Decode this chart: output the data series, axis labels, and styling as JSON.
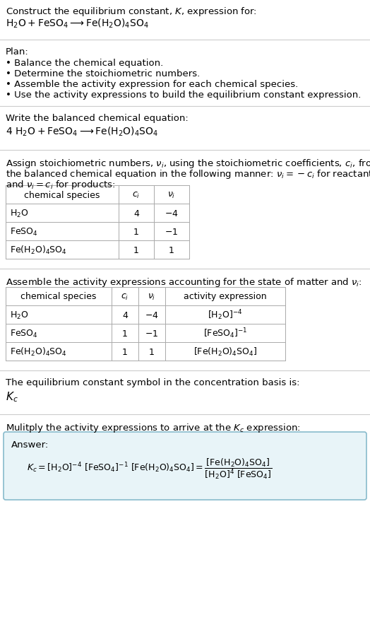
{
  "title_line1": "Construct the equilibrium constant, $K$, expression for:",
  "title_line2": "$\\mathrm{H_2O + FeSO_4 \\longrightarrow Fe(H_2O)_4SO_4}$",
  "plan_header": "Plan:",
  "plan_items": [
    "• Balance the chemical equation.",
    "• Determine the stoichiometric numbers.",
    "• Assemble the activity expression for each chemical species.",
    "• Use the activity expressions to build the equilibrium constant expression."
  ],
  "balanced_header": "Write the balanced chemical equation:",
  "balanced_eq": "$\\mathrm{4\\ H_2O + FeSO_4 \\longrightarrow Fe(H_2O)_4SO_4}$",
  "stoich_header1": "Assign stoichiometric numbers, $\\nu_i$, using the stoichiometric coefficients, $c_i$, from",
  "stoich_header2": "the balanced chemical equation in the following manner: $\\nu_i = -c_i$ for reactants",
  "stoich_header3": "and $\\nu_i = c_i$ for products:",
  "table1_headers": [
    "chemical species",
    "$c_i$",
    "$\\nu_i$"
  ],
  "table1_data": [
    [
      "$\\mathrm{H_2O}$",
      "4",
      "$-4$"
    ],
    [
      "$\\mathrm{FeSO_4}$",
      "1",
      "$-1$"
    ],
    [
      "$\\mathrm{Fe(H_2O)_4SO_4}$",
      "1",
      "1"
    ]
  ],
  "activity_header": "Assemble the activity expressions accounting for the state of matter and $\\nu_i$:",
  "table2_headers": [
    "chemical species",
    "$c_i$",
    "$\\nu_i$",
    "activity expression"
  ],
  "table2_data": [
    [
      "$\\mathrm{H_2O}$",
      "4",
      "$-4$",
      "$[\\mathrm{H_2O}]^{-4}$"
    ],
    [
      "$\\mathrm{FeSO_4}$",
      "1",
      "$-1$",
      "$[\\mathrm{FeSO_4}]^{-1}$"
    ],
    [
      "$\\mathrm{Fe(H_2O)_4SO_4}$",
      "1",
      "1",
      "$[\\mathrm{Fe(H_2O)_4SO_4}]$"
    ]
  ],
  "kc_header": "The equilibrium constant symbol in the concentration basis is:",
  "kc_symbol": "$K_c$",
  "multiply_header": "Mulitply the activity expressions to arrive at the $K_c$ expression:",
  "answer_label": "Answer:",
  "bg_color": "#ffffff",
  "answer_bg": "#e8f4f8",
  "answer_border": "#88bbcc",
  "text_color": "#000000",
  "sep_color": "#cccccc",
  "table_line_color": "#aaaaaa",
  "fs": 9.5,
  "fs_eq": 10.0,
  "fs_table": 9.0,
  "fs_kc": 11.0
}
